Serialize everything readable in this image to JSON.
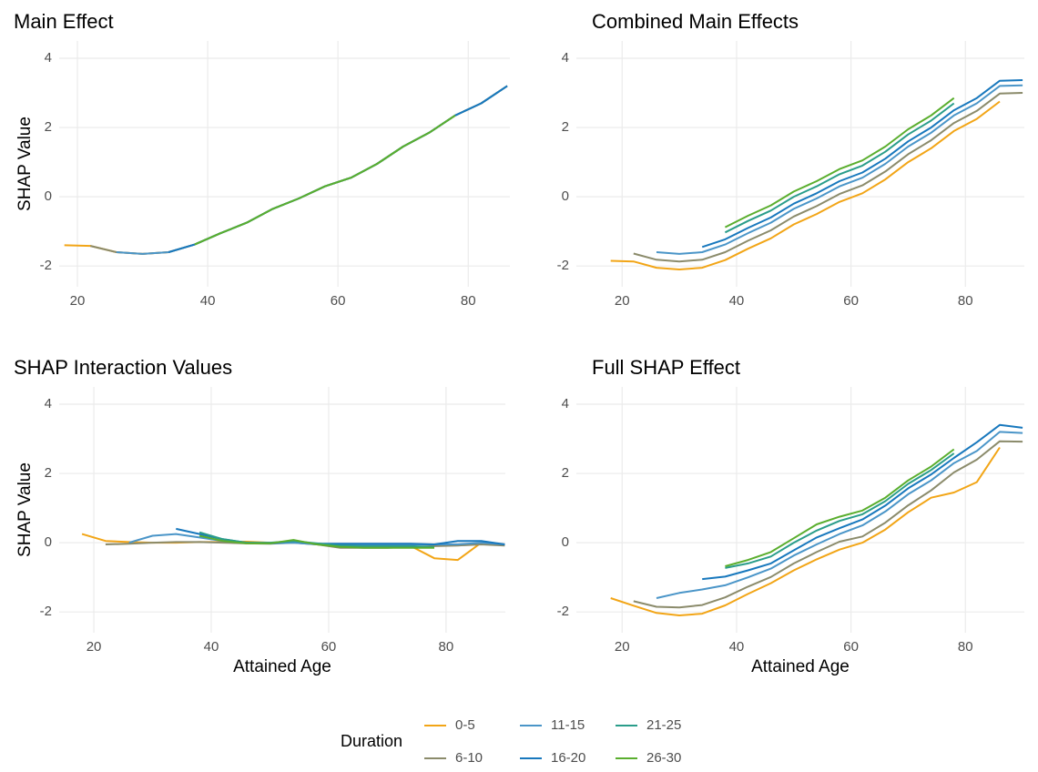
{
  "chart_data": [
    {
      "type": "line",
      "title": "Main Effect",
      "ylabel": "SHAP Value",
      "legend_title": "Duration",
      "xlim": [
        17.2,
        86.4
      ],
      "ylim": [
        -2.6,
        4.5
      ],
      "xticks": [
        20,
        40,
        60,
        80
      ],
      "yticks": [
        -2,
        0,
        2,
        4
      ],
      "grid": true,
      "series": [
        {
          "name": "0-5",
          "color": "#f2a516",
          "x": [
            18,
            22,
            26,
            30,
            34,
            38,
            42,
            46,
            50,
            54,
            58,
            62,
            66,
            70,
            74,
            78,
            82,
            86
          ],
          "values": [
            -1.4,
            -1.42,
            -1.6,
            -1.65,
            -1.6,
            -1.38,
            -1.05,
            -0.75,
            -0.35,
            -0.05,
            0.3,
            0.55,
            0.95,
            1.45,
            1.85,
            2.35,
            2.7,
            3.2
          ]
        },
        {
          "name": "6-10",
          "color": "#8b8b6b",
          "x": [
            22,
            26,
            30,
            34,
            38,
            42,
            46,
            50,
            54,
            58,
            62,
            66,
            70,
            74,
            78,
            82,
            86
          ],
          "values": [
            -1.42,
            -1.6,
            -1.65,
            -1.6,
            -1.38,
            -1.05,
            -0.75,
            -0.35,
            -0.05,
            0.3,
            0.55,
            0.95,
            1.45,
            1.85,
            2.35,
            2.7,
            3.2
          ]
        },
        {
          "name": "11-15",
          "color": "#4a95c8",
          "x": [
            26,
            30,
            34,
            38,
            42,
            46,
            50,
            54,
            58,
            62,
            66,
            70,
            74,
            78,
            82,
            86
          ],
          "values": [
            -1.6,
            -1.65,
            -1.6,
            -1.38,
            -1.05,
            -0.75,
            -0.35,
            -0.05,
            0.3,
            0.55,
            0.95,
            1.45,
            1.85,
            2.35,
            2.7,
            3.2
          ]
        },
        {
          "name": "16-20",
          "color": "#1878bd",
          "x": [
            34,
            38,
            42,
            46,
            50,
            54,
            58,
            62,
            66,
            70,
            74,
            78,
            82,
            86
          ],
          "values": [
            -1.6,
            -1.38,
            -1.05,
            -0.75,
            -0.35,
            -0.05,
            0.3,
            0.55,
            0.95,
            1.45,
            1.85,
            2.35,
            2.7,
            3.2
          ]
        },
        {
          "name": "21-25",
          "color": "#2a9d8a",
          "x": [
            38,
            42,
            46,
            50,
            54,
            58,
            62,
            66,
            70,
            74,
            78
          ],
          "values": [
            -1.38,
            -1.05,
            -0.75,
            -0.35,
            -0.05,
            0.3,
            0.55,
            0.95,
            1.45,
            1.85,
            2.35
          ]
        },
        {
          "name": "26-30",
          "color": "#5aae2e",
          "x": [
            38,
            42,
            46,
            50,
            54,
            58,
            62,
            66,
            70,
            74,
            78
          ],
          "values": [
            -1.38,
            -1.05,
            -0.75,
            -0.35,
            -0.05,
            0.3,
            0.55,
            0.95,
            1.45,
            1.85,
            2.35
          ]
        }
      ]
    },
    {
      "type": "line",
      "title": "Combined Main Effects",
      "xlim": [
        12.0,
        90.3
      ],
      "ylim": [
        -2.6,
        4.5
      ],
      "xticks": [
        20,
        40,
        60,
        80
      ],
      "yticks": [
        -2,
        0,
        2,
        4
      ],
      "grid": true,
      "series": [
        {
          "name": "0-5",
          "color": "#f2a516",
          "x": [
            18,
            22,
            26,
            30,
            34,
            38,
            42,
            46,
            50,
            54,
            58,
            62,
            66,
            70,
            74,
            78,
            82,
            86
          ],
          "values": [
            -1.85,
            -1.87,
            -2.05,
            -2.1,
            -2.05,
            -1.83,
            -1.5,
            -1.2,
            -0.8,
            -0.5,
            -0.15,
            0.1,
            0.5,
            1.0,
            1.4,
            1.9,
            2.25,
            2.75
          ]
        },
        {
          "name": "6-10",
          "color": "#8b8b6b",
          "x": [
            22,
            26,
            30,
            34,
            38,
            42,
            46,
            50,
            54,
            58,
            62,
            66,
            70,
            74,
            78,
            82,
            86,
            90
          ],
          "values": [
            -1.64,
            -1.82,
            -1.87,
            -1.82,
            -1.6,
            -1.27,
            -0.97,
            -0.57,
            -0.27,
            0.08,
            0.33,
            0.73,
            1.23,
            1.63,
            2.13,
            2.48,
            2.98,
            3.0
          ]
        },
        {
          "name": "11-15",
          "color": "#4a95c8",
          "x": [
            26,
            30,
            34,
            38,
            42,
            46,
            50,
            54,
            58,
            62,
            66,
            70,
            74,
            78,
            82,
            86,
            90
          ],
          "values": [
            -1.6,
            -1.65,
            -1.6,
            -1.38,
            -1.05,
            -0.75,
            -0.35,
            -0.05,
            0.3,
            0.55,
            0.95,
            1.45,
            1.85,
            2.35,
            2.7,
            3.2,
            3.22
          ]
        },
        {
          "name": "16-20",
          "color": "#1878bd",
          "x": [
            34,
            38,
            42,
            46,
            50,
            54,
            58,
            62,
            66,
            70,
            74,
            78,
            82,
            86,
            90
          ],
          "values": [
            -1.45,
            -1.23,
            -0.9,
            -0.6,
            -0.2,
            0.1,
            0.45,
            0.7,
            1.1,
            1.6,
            2.0,
            2.5,
            2.85,
            3.35,
            3.37
          ]
        },
        {
          "name": "21-25",
          "color": "#2a9d8a",
          "x": [
            38,
            42,
            46,
            50,
            54,
            58,
            62,
            66,
            70,
            74,
            78
          ],
          "values": [
            -1.03,
            -0.7,
            -0.4,
            0.0,
            0.3,
            0.65,
            0.9,
            1.3,
            1.8,
            2.2,
            2.7
          ]
        },
        {
          "name": "26-30",
          "color": "#5aae2e",
          "x": [
            38,
            42,
            46,
            50,
            54,
            58,
            62,
            66,
            70,
            74,
            78
          ],
          "values": [
            -0.88,
            -0.55,
            -0.25,
            0.15,
            0.45,
            0.8,
            1.05,
            1.45,
            1.95,
            2.35,
            2.85
          ]
        }
      ]
    },
    {
      "type": "line",
      "title": "SHAP Interaction Values",
      "xlabel": "Attained Age",
      "ylabel": "SHAP Value",
      "xlim": [
        14.1,
        90.1
      ],
      "ylim": [
        -2.6,
        4.5
      ],
      "xticks": [
        20,
        40,
        60,
        80
      ],
      "yticks": [
        -2,
        0,
        2,
        4
      ],
      "grid": true,
      "series": [
        {
          "name": "0-5",
          "color": "#f2a516",
          "x": [
            18,
            22,
            26,
            30,
            34,
            38,
            42,
            46,
            50,
            54,
            58,
            62,
            66,
            70,
            74,
            78,
            82,
            86
          ],
          "values": [
            0.25,
            0.05,
            0.02,
            0.0,
            0.0,
            0.02,
            0.02,
            0.03,
            0.0,
            0.02,
            -0.05,
            -0.1,
            -0.12,
            -0.12,
            -0.1,
            -0.45,
            -0.5,
            0.0
          ]
        },
        {
          "name": "6-10",
          "color": "#8b8b6b",
          "x": [
            22,
            26,
            30,
            34,
            38,
            42,
            46,
            50,
            54,
            58,
            62,
            66,
            70,
            74,
            78,
            82,
            86,
            90
          ],
          "values": [
            -0.05,
            -0.03,
            0.0,
            0.02,
            0.02,
            0.0,
            -0.02,
            -0.03,
            0.0,
            -0.05,
            -0.15,
            -0.15,
            -0.15,
            -0.12,
            -0.1,
            -0.08,
            -0.05,
            -0.08
          ]
        },
        {
          "name": "11-15",
          "color": "#4a95c8",
          "x": [
            26,
            30,
            34,
            38,
            42,
            46,
            50,
            54,
            58,
            62,
            66,
            70,
            74,
            78,
            82,
            86,
            90
          ],
          "values": [
            0.0,
            0.2,
            0.25,
            0.15,
            0.05,
            0.0,
            -0.02,
            0.0,
            -0.05,
            -0.05,
            -0.05,
            -0.05,
            -0.05,
            -0.05,
            -0.05,
            0.0,
            -0.05
          ]
        },
        {
          "name": "16-20",
          "color": "#1878bd",
          "x": [
            34,
            38,
            42,
            46,
            50,
            54,
            58,
            62,
            66,
            70,
            74,
            78,
            82,
            86,
            90
          ],
          "values": [
            0.4,
            0.25,
            0.1,
            0.0,
            -0.02,
            0.05,
            -0.03,
            -0.03,
            -0.03,
            -0.03,
            -0.03,
            -0.05,
            0.05,
            0.05,
            -0.05
          ]
        },
        {
          "name": "21-25",
          "color": "#2a9d8a",
          "x": [
            38,
            42,
            46,
            50,
            54,
            58,
            62,
            66,
            70,
            74,
            78
          ],
          "values": [
            0.3,
            0.1,
            0.0,
            0.0,
            0.05,
            -0.02,
            -0.08,
            -0.1,
            -0.1,
            -0.1,
            -0.12
          ]
        },
        {
          "name": "26-30",
          "color": "#5aae2e",
          "x": [
            38,
            42,
            46,
            50,
            54,
            58,
            62,
            66,
            70,
            74,
            78
          ],
          "values": [
            0.2,
            0.05,
            -0.02,
            -0.02,
            0.08,
            -0.05,
            -0.12,
            -0.15,
            -0.15,
            -0.15,
            -0.15
          ]
        }
      ]
    },
    {
      "type": "line",
      "title": "Full SHAP Effect",
      "xlabel": "Attained Age",
      "xlim": [
        12.0,
        90.3
      ],
      "ylim": [
        -2.6,
        4.5
      ],
      "xticks": [
        20,
        40,
        60,
        80
      ],
      "yticks": [
        -2,
        0,
        2,
        4
      ],
      "grid": true,
      "series": [
        {
          "name": "0-5",
          "color": "#f2a516",
          "x": [
            18,
            22,
            26,
            30,
            34,
            38,
            42,
            46,
            50,
            54,
            58,
            62,
            66,
            70,
            74,
            78,
            82,
            86
          ],
          "values": [
            -1.6,
            -1.82,
            -2.03,
            -2.1,
            -2.05,
            -1.81,
            -1.48,
            -1.17,
            -0.8,
            -0.48,
            -0.2,
            0.0,
            0.38,
            0.88,
            1.3,
            1.45,
            1.75,
            2.75
          ]
        },
        {
          "name": "6-10",
          "color": "#8b8b6b",
          "x": [
            22,
            26,
            30,
            34,
            38,
            42,
            46,
            50,
            54,
            58,
            62,
            66,
            70,
            74,
            78,
            82,
            86,
            90
          ],
          "values": [
            -1.69,
            -1.85,
            -1.87,
            -1.8,
            -1.58,
            -1.27,
            -0.99,
            -0.6,
            -0.27,
            0.03,
            0.18,
            0.58,
            1.08,
            1.51,
            2.03,
            2.4,
            2.93,
            2.92
          ]
        },
        {
          "name": "11-15",
          "color": "#4a95c8",
          "x": [
            26,
            30,
            34,
            38,
            42,
            46,
            50,
            54,
            58,
            62,
            66,
            70,
            74,
            78,
            82,
            86,
            90
          ],
          "values": [
            -1.6,
            -1.45,
            -1.35,
            -1.23,
            -1.0,
            -0.75,
            -0.37,
            -0.05,
            0.25,
            0.5,
            0.9,
            1.4,
            1.8,
            2.3,
            2.65,
            3.2,
            3.17
          ]
        },
        {
          "name": "16-20",
          "color": "#1878bd",
          "x": [
            34,
            38,
            42,
            46,
            50,
            54,
            58,
            62,
            66,
            70,
            74,
            78,
            82,
            86,
            90
          ],
          "values": [
            -1.05,
            -0.98,
            -0.8,
            -0.6,
            -0.22,
            0.15,
            0.42,
            0.67,
            1.07,
            1.57,
            1.97,
            2.45,
            2.9,
            3.4,
            3.32
          ]
        },
        {
          "name": "21-25",
          "color": "#2a9d8a",
          "x": [
            38,
            42,
            46,
            50,
            54,
            58,
            62,
            66,
            70,
            74,
            78
          ],
          "values": [
            -0.73,
            -0.6,
            -0.4,
            0.0,
            0.35,
            0.63,
            0.82,
            1.2,
            1.7,
            2.1,
            2.58
          ]
        },
        {
          "name": "26-30",
          "color": "#5aae2e",
          "x": [
            38,
            42,
            46,
            50,
            54,
            58,
            62,
            66,
            70,
            74,
            78
          ],
          "values": [
            -0.68,
            -0.5,
            -0.27,
            0.13,
            0.53,
            0.75,
            0.93,
            1.3,
            1.8,
            2.2,
            2.7
          ]
        }
      ]
    }
  ]
}
